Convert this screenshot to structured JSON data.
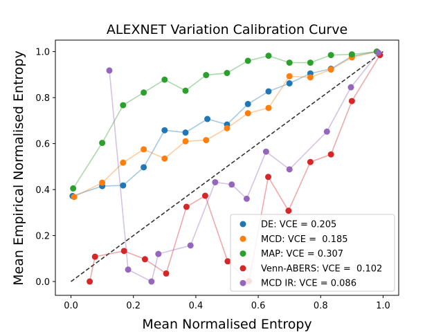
{
  "chart_data": {
    "type": "scatter",
    "title": "ALEXNET Variation Calibration Curve",
    "xlabel": "Mean Normalised Entropy",
    "ylabel": "Mean Empirical Normalised Entropy",
    "xlim": [
      -0.05,
      1.05
    ],
    "ylim": [
      -0.06,
      1.05
    ],
    "xticks": [
      0.0,
      0.2,
      0.4,
      0.6,
      0.8,
      1.0
    ],
    "yticks": [
      0.0,
      0.2,
      0.4,
      0.6,
      0.8,
      1.0
    ],
    "tick_labels": {
      "x": [
        "0.0",
        "0.2",
        "0.4",
        "0.6",
        "0.8",
        "1.0"
      ],
      "y": [
        "0.0",
        "0.2",
        "0.4",
        "0.6",
        "0.8",
        "1.0"
      ]
    },
    "reference_line": {
      "x": [
        0.0,
        1.0
      ],
      "y": [
        0.0,
        1.0
      ],
      "style": "dashed"
    },
    "legend_position": "lower-right",
    "series": [
      {
        "name": "DE: VCE = 0.205",
        "color": "#1f77b4",
        "x": [
          0.005,
          0.1,
          0.167,
          0.233,
          0.3,
          0.367,
          0.437,
          0.5,
          0.567,
          0.633,
          0.7,
          0.767,
          0.833,
          0.9,
          0.98
        ],
        "y": [
          0.372,
          0.415,
          0.418,
          0.497,
          0.658,
          0.648,
          0.707,
          0.683,
          0.772,
          0.827,
          0.862,
          0.905,
          0.925,
          0.98,
          1.0
        ]
      },
      {
        "name": "MCD: VCE =  0.185",
        "color": "#ff7f0e",
        "x": [
          0.01,
          0.1,
          0.167,
          0.233,
          0.3,
          0.367,
          0.433,
          0.5,
          0.567,
          0.633,
          0.7,
          0.767,
          0.833,
          0.9,
          0.98
        ],
        "y": [
          0.368,
          0.43,
          0.517,
          0.575,
          0.535,
          0.61,
          0.615,
          0.667,
          0.732,
          0.755,
          0.893,
          0.888,
          0.922,
          0.975,
          1.0
        ]
      },
      {
        "name": "MAP: VCE = 0.307",
        "color": "#2ca02c",
        "x": [
          0.007,
          0.1,
          0.167,
          0.233,
          0.3,
          0.367,
          0.433,
          0.5,
          0.567,
          0.633,
          0.7,
          0.767,
          0.833,
          0.9,
          0.98
        ],
        "y": [
          0.405,
          0.603,
          0.767,
          0.822,
          0.878,
          0.83,
          0.898,
          0.907,
          0.96,
          0.982,
          0.952,
          0.952,
          0.985,
          0.988,
          1.0
        ]
      },
      {
        "name": "Venn-ABERS: VCE =  0.102",
        "color": "#d62728",
        "x": [
          0.06,
          0.077,
          0.17,
          0.237,
          0.305,
          0.37,
          0.43,
          0.502,
          0.57,
          0.632,
          0.697,
          0.767,
          0.833,
          0.9,
          0.99
        ],
        "y": [
          0.0,
          0.108,
          0.133,
          0.097,
          0.035,
          0.325,
          0.373,
          0.088,
          0.002,
          0.455,
          0.308,
          0.52,
          0.553,
          0.785,
          0.985
        ]
      },
      {
        "name": "MCD IR: VCE = 0.086",
        "color": "#9467bd",
        "x": [
          0.123,
          0.183,
          0.258,
          0.28,
          0.383,
          0.462,
          0.515,
          0.563,
          0.625,
          0.7,
          0.82,
          0.897,
          0.985
        ],
        "y": [
          0.918,
          0.052,
          0.0,
          0.12,
          0.157,
          0.432,
          0.422,
          0.36,
          0.565,
          0.488,
          0.652,
          0.845,
          0.995
        ]
      }
    ]
  }
}
